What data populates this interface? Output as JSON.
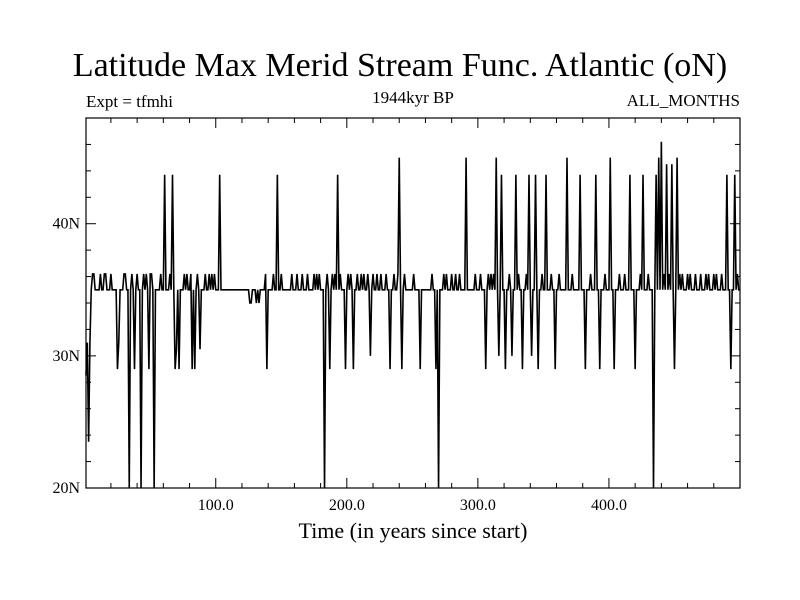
{
  "header": {
    "title": "Latitude Max Merid Stream Func. Atlantic (oN)",
    "expt": "Expt = tfmhi",
    "period": "1944kyr BP",
    "months": "ALL_MONTHS"
  },
  "chart_data": {
    "type": "line",
    "title": "Latitude Max Merid Stream Func. Atlantic (oN)",
    "xlabel": "Time (in years since start)",
    "ylabel": "",
    "xlim": [
      1,
      500
    ],
    "ylim": [
      20,
      48
    ],
    "xticks": [
      100,
      200,
      300,
      400
    ],
    "xtick_labels": [
      "100.0",
      "200.0",
      "300.0",
      "400.0"
    ],
    "yticks": [
      20,
      30,
      40
    ],
    "ytick_labels": [
      "20N",
      "30N",
      "40N"
    ],
    "grid": false,
    "legend": "none",
    "baseline": 35,
    "series": [
      {
        "events": [
          [
            1,
            28.5
          ],
          [
            2,
            31
          ],
          [
            3,
            23.5
          ],
          [
            4,
            31
          ],
          [
            6,
            36.2
          ],
          [
            7,
            36.2
          ],
          [
            12,
            36.2
          ],
          [
            15,
            36.2
          ],
          [
            16,
            36.2
          ],
          [
            20,
            36.2
          ],
          [
            25,
            29
          ],
          [
            26,
            31
          ],
          [
            30,
            36.2
          ],
          [
            31,
            36.2
          ],
          [
            34,
            20
          ],
          [
            36,
            36.2
          ],
          [
            38,
            29
          ],
          [
            40,
            36.2
          ],
          [
            43,
            20
          ],
          [
            45,
            36.2
          ],
          [
            47,
            36.2
          ],
          [
            49,
            29
          ],
          [
            50,
            36.2
          ],
          [
            51,
            36.2
          ],
          [
            53,
            20
          ],
          [
            58,
            36.2
          ],
          [
            61,
            43.7
          ],
          [
            65,
            36.2
          ],
          [
            67,
            43.7
          ],
          [
            69,
            29
          ],
          [
            70,
            30.5
          ],
          [
            72,
            29
          ],
          [
            76,
            36.2
          ],
          [
            78,
            36.2
          ],
          [
            81,
            36.2
          ],
          [
            82,
            29
          ],
          [
            84,
            29
          ],
          [
            86,
            36.2
          ],
          [
            88,
            30.5
          ],
          [
            92,
            36.2
          ],
          [
            95,
            36.2
          ],
          [
            97,
            36.2
          ],
          [
            99,
            36.2
          ],
          [
            103,
            43.7
          ],
          [
            126,
            34
          ],
          [
            127,
            34
          ],
          [
            131,
            34
          ],
          [
            133,
            34
          ],
          [
            138,
            36.2
          ],
          [
            139,
            29
          ],
          [
            144,
            36.2
          ],
          [
            147,
            43.7
          ],
          [
            150,
            36.2
          ],
          [
            158,
            36.2
          ],
          [
            162,
            36.2
          ],
          [
            166,
            36.2
          ],
          [
            170,
            36.2
          ],
          [
            175,
            36.2
          ],
          [
            177,
            36.2
          ],
          [
            179,
            36.2
          ],
          [
            183,
            20
          ],
          [
            185,
            36.2
          ],
          [
            187,
            29
          ],
          [
            189,
            36.2
          ],
          [
            191,
            36.2
          ],
          [
            193,
            43.7
          ],
          [
            195,
            36.2
          ],
          [
            199,
            29
          ],
          [
            201,
            36.2
          ],
          [
            203,
            36.2
          ],
          [
            205,
            29
          ],
          [
            208,
            36.2
          ],
          [
            211,
            36.2
          ],
          [
            213,
            36.2
          ],
          [
            216,
            36.2
          ],
          [
            218,
            30
          ],
          [
            220,
            36.2
          ],
          [
            223,
            36.2
          ],
          [
            226,
            36.2
          ],
          [
            230,
            36.2
          ],
          [
            233,
            29
          ],
          [
            236,
            36.2
          ],
          [
            239,
            36.2
          ],
          [
            240,
            45
          ],
          [
            242,
            29
          ],
          [
            244,
            36.2
          ],
          [
            251,
            36.2
          ],
          [
            256,
            29
          ],
          [
            265,
            36.2
          ],
          [
            268,
            29
          ],
          [
            270,
            20
          ],
          [
            274,
            36.2
          ],
          [
            276,
            36.2
          ],
          [
            280,
            36.2
          ],
          [
            283,
            36.2
          ],
          [
            286,
            36.2
          ],
          [
            291,
            45
          ],
          [
            298,
            36.2
          ],
          [
            302,
            36.2
          ],
          [
            306,
            29
          ],
          [
            308,
            36.2
          ],
          [
            310,
            36.2
          ],
          [
            312,
            36.2
          ],
          [
            314,
            45
          ],
          [
            316,
            30
          ],
          [
            318,
            43.7
          ],
          [
            321,
            29
          ],
          [
            324,
            36.2
          ],
          [
            326,
            30
          ],
          [
            329,
            43.7
          ],
          [
            331,
            36.2
          ],
          [
            334,
            29
          ],
          [
            337,
            36.2
          ],
          [
            339,
            43.7
          ],
          [
            341,
            30
          ],
          [
            344,
            43.7
          ],
          [
            346,
            29
          ],
          [
            349,
            36.2
          ],
          [
            352,
            43.7
          ],
          [
            356,
            36.2
          ],
          [
            359,
            29
          ],
          [
            362,
            36.2
          ],
          [
            368,
            45
          ],
          [
            372,
            36.2
          ],
          [
            378,
            43.7
          ],
          [
            382,
            29
          ],
          [
            386,
            36.2
          ],
          [
            390,
            43.7
          ],
          [
            393,
            29
          ],
          [
            397,
            36.2
          ],
          [
            401,
            45
          ],
          [
            404,
            29
          ],
          [
            408,
            36.2
          ],
          [
            412,
            36.2
          ],
          [
            416,
            43.7
          ],
          [
            420,
            29
          ],
          [
            424,
            36.2
          ],
          [
            426,
            43.7
          ],
          [
            430,
            36.2
          ],
          [
            434,
            20
          ],
          [
            436,
            43.7
          ],
          [
            438,
            45
          ],
          [
            440,
            46.2
          ],
          [
            442,
            36.2
          ],
          [
            444,
            44.5
          ],
          [
            446,
            36.2
          ],
          [
            448,
            44.5
          ],
          [
            450,
            29
          ],
          [
            452,
            45
          ],
          [
            454,
            36.2
          ],
          [
            456,
            36.2
          ],
          [
            460,
            36.2
          ],
          [
            462,
            36.2
          ],
          [
            466,
            36.2
          ],
          [
            470,
            36.2
          ],
          [
            474,
            36.2
          ],
          [
            476,
            36.2
          ],
          [
            480,
            36.2
          ],
          [
            482,
            36.2
          ],
          [
            486,
            36.2
          ],
          [
            490,
            43.7
          ],
          [
            493,
            29
          ],
          [
            496,
            43.7
          ],
          [
            498,
            36.2
          ]
        ]
      }
    ]
  }
}
